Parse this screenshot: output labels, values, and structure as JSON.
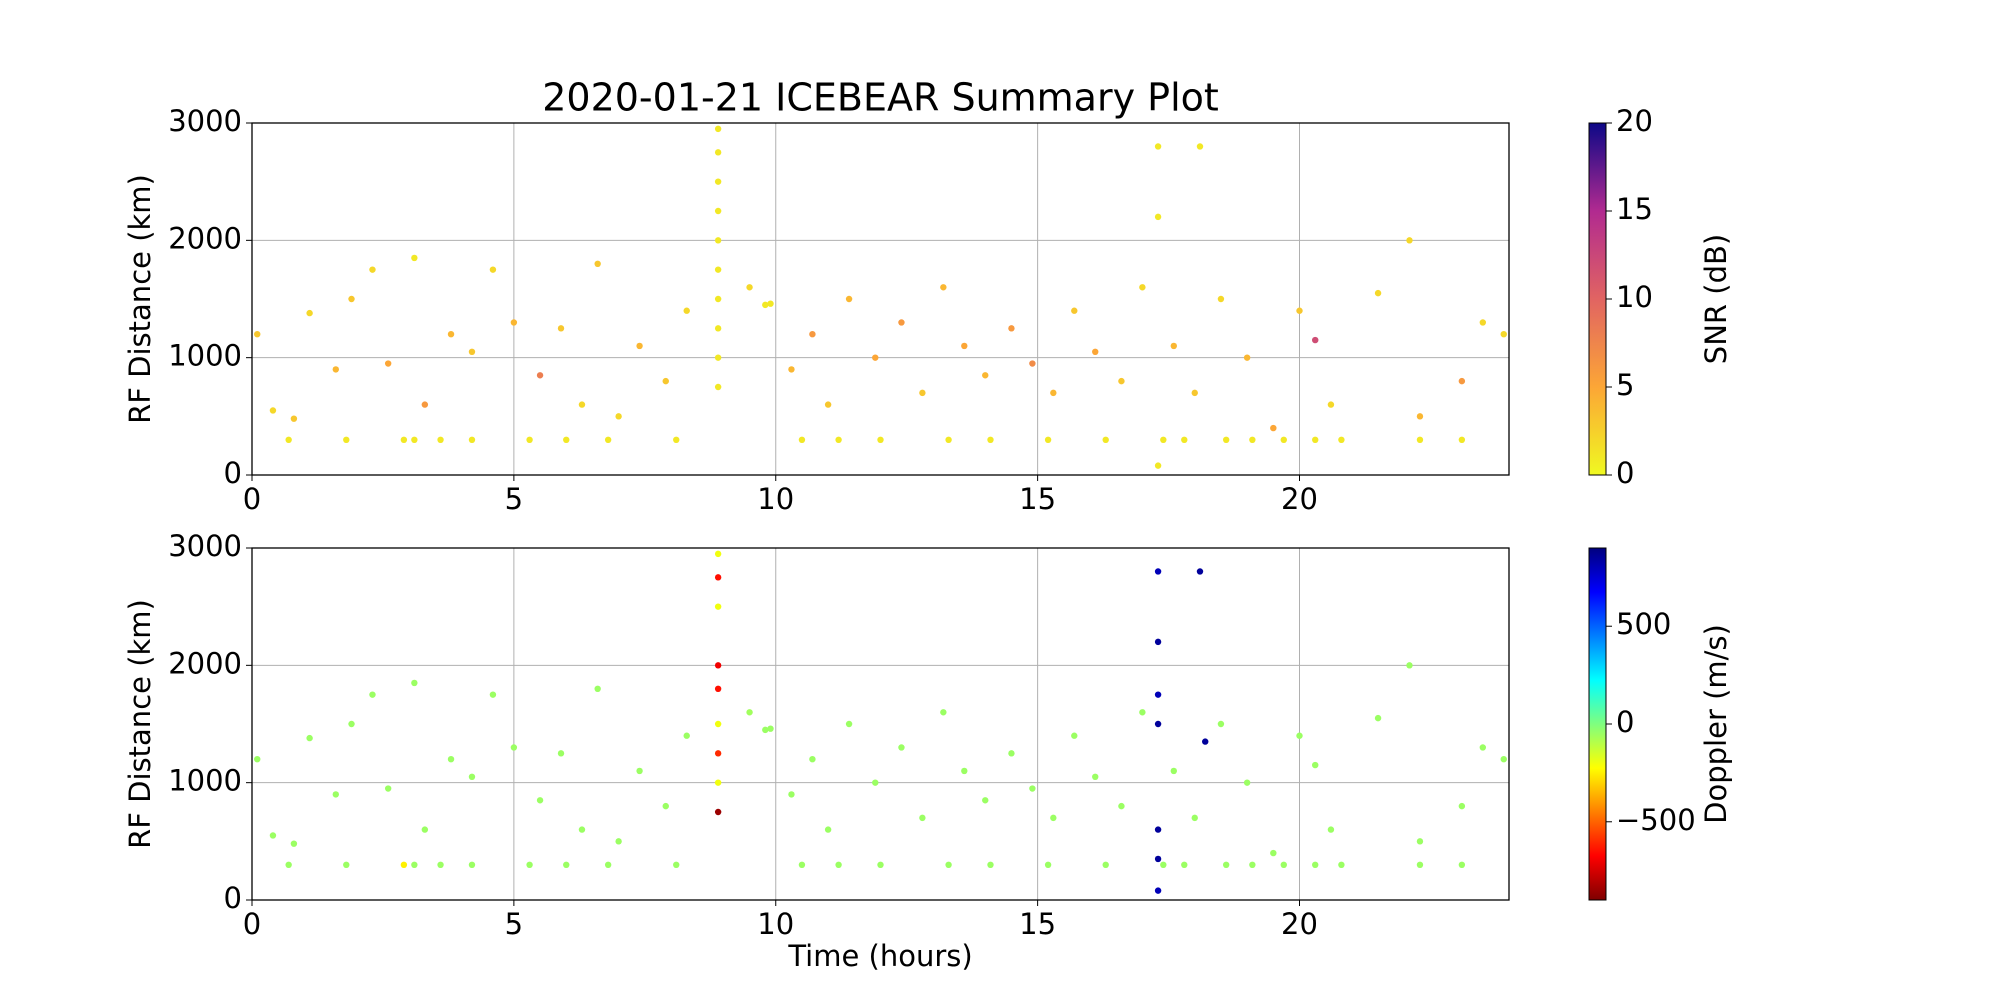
{
  "chart_data": [
    {
      "type": "scatter",
      "title": "2020-01-21 ICEBEAR Summary Plot",
      "y_label": "RF Distance (km)",
      "xlim": [
        0,
        24
      ],
      "xticks": [
        0,
        5,
        10,
        15,
        20
      ],
      "ylim": [
        0,
        3000
      ],
      "yticks": [
        0,
        1000,
        2000,
        3000
      ],
      "grid": true,
      "colorbar": {
        "label": "SNR (dB)",
        "lim": [
          0,
          20
        ],
        "ticks": [
          0,
          5,
          10,
          15,
          20
        ],
        "colormap": [
          "#f0f921",
          "#fca636",
          "#e16462",
          "#b12a90",
          "#0d0887"
        ]
      },
      "series": [
        {
          "x": [
            8.9,
            8.9,
            8.9,
            8.9,
            8.9,
            8.9,
            8.9,
            8.9,
            8.9,
            8.9,
            9.8,
            9.9,
            9.5,
            0.7,
            1.8,
            2.9,
            3.1,
            3.6,
            4.2,
            5.3,
            6.0,
            6.8,
            8.1,
            10.5,
            11.2,
            12.0,
            13.3,
            14.1,
            15.2,
            16.3,
            17.4,
            17.8,
            18.6,
            19.1,
            19.7,
            20.3,
            20.8,
            22.3,
            23.1,
            17.3,
            18.1,
            17.3,
            22.1,
            17.3,
            0.1,
            0.4,
            0.8,
            1.1,
            1.6,
            1.9,
            2.3,
            2.6,
            3.1,
            3.3,
            3.8,
            4.2,
            4.6,
            5.0,
            5.5,
            5.9,
            6.3,
            6.6,
            7.0,
            7.4,
            7.9,
            8.3,
            10.3,
            10.7,
            11.0,
            11.4,
            11.9,
            12.4,
            12.8,
            13.2,
            13.6,
            14.0,
            14.5,
            14.9,
            15.3,
            15.7,
            16.1,
            16.6,
            17.0,
            17.6,
            18.0,
            18.5,
            19.0,
            19.5,
            20.0,
            20.3,
            20.6,
            21.5,
            22.3,
            23.1,
            23.5,
            23.9
          ],
          "y": [
            750,
            1000,
            1250,
            1500,
            1750,
            2000,
            2250,
            2500,
            2750,
            2950,
            1450,
            1460,
            1600,
            300,
            300,
            300,
            300,
            300,
            300,
            300,
            300,
            300,
            300,
            300,
            300,
            300,
            300,
            300,
            300,
            300,
            300,
            300,
            300,
            300,
            300,
            300,
            300,
            300,
            300,
            2800,
            2800,
            2200,
            2000,
            80,
            1200,
            550,
            480,
            1380,
            900,
            1500,
            1750,
            950,
            1850,
            600,
            1200,
            1050,
            1750,
            1300,
            850,
            1250,
            600,
            1800,
            500,
            1100,
            800,
            1400,
            900,
            1200,
            600,
            1500,
            1000,
            1300,
            700,
            1600,
            1100,
            850,
            1250,
            950,
            700,
            1400,
            1050,
            800,
            1600,
            1100,
            700,
            1500,
            1000,
            400,
            1400,
            1150,
            600,
            1550,
            500,
            800,
            1300,
            1200
          ],
          "c": [
            1,
            1,
            1,
            1,
            1,
            1,
            1,
            1,
            1,
            1,
            1,
            1,
            2,
            1,
            1,
            1,
            1,
            1,
            1,
            1,
            1,
            1,
            1,
            1,
            1,
            1,
            1,
            1,
            1,
            1,
            1,
            1,
            1,
            1,
            1,
            1,
            1,
            1,
            1,
            1,
            1,
            1,
            2,
            1,
            3,
            2,
            3,
            2,
            4,
            3,
            2,
            5,
            1,
            6,
            4,
            3,
            2,
            4,
            8,
            3,
            2,
            3,
            2,
            4,
            3,
            2,
            4,
            6,
            3,
            4,
            5,
            6,
            3,
            4,
            5,
            4,
            6,
            7,
            4,
            3,
            5,
            3,
            2,
            4,
            3,
            2,
            4,
            5,
            3,
            12,
            2,
            2,
            4,
            6,
            2,
            2
          ]
        }
      ]
    },
    {
      "type": "scatter",
      "x_label": "Time (hours)",
      "y_label": "RF Distance (km)",
      "xlim": [
        0,
        24
      ],
      "xticks": [
        0,
        5,
        10,
        15,
        20
      ],
      "ylim": [
        0,
        3000
      ],
      "yticks": [
        0,
        1000,
        2000,
        3000
      ],
      "grid": true,
      "colorbar": {
        "label": "Doppler (m/s)",
        "lim": [
          -900,
          900
        ],
        "ticks": [
          {
            "value": -500,
            "label": "−500"
          },
          0,
          500
        ],
        "colormap": [
          "#7f0000",
          "#ff0000",
          "#ff7f00",
          "#ffff00",
          "#7fff7f",
          "#00ffff",
          "#007fff",
          "#0000ff",
          "#00007f"
        ]
      },
      "series": [
        {
          "x": [
            8.9,
            8.9,
            8.9,
            8.9,
            8.9,
            8.9,
            8.9,
            8.9,
            8.9,
            9.8,
            9.9,
            9.5,
            0.7,
            1.8,
            2.9,
            3.1,
            3.6,
            4.2,
            5.3,
            6.0,
            6.8,
            8.1,
            10.5,
            11.2,
            12.0,
            13.3,
            14.1,
            15.2,
            16.3,
            17.4,
            17.8,
            18.6,
            19.1,
            19.7,
            20.3,
            20.8,
            22.3,
            23.1,
            17.3,
            17.3,
            17.3,
            17.3,
            17.3,
            17.3,
            17.3,
            18.1,
            18.2,
            22.1,
            0.1,
            0.4,
            0.8,
            1.1,
            1.6,
            1.9,
            2.3,
            2.6,
            3.1,
            3.3,
            3.8,
            4.2,
            4.6,
            5.0,
            5.5,
            5.9,
            6.3,
            6.6,
            7.0,
            7.4,
            7.9,
            8.3,
            10.3,
            10.7,
            11.0,
            11.4,
            11.9,
            12.4,
            12.8,
            13.2,
            13.6,
            14.0,
            14.5,
            14.9,
            15.3,
            15.7,
            16.1,
            16.6,
            17.0,
            17.6,
            18.0,
            18.5,
            19.0,
            19.5,
            20.0,
            20.3,
            20.6,
            21.5,
            22.3,
            23.1,
            23.5,
            23.9
          ],
          "y": [
            750,
            1000,
            1250,
            1500,
            1800,
            2000,
            2500,
            2750,
            2950,
            1450,
            1460,
            1600,
            300,
            300,
            300,
            300,
            300,
            300,
            300,
            300,
            300,
            300,
            300,
            300,
            300,
            300,
            300,
            300,
            300,
            300,
            300,
            300,
            300,
            300,
            300,
            300,
            300,
            300,
            2800,
            2200,
            1750,
            1500,
            600,
            350,
            80,
            2800,
            1350,
            2000,
            1200,
            550,
            480,
            1380,
            900,
            1500,
            1750,
            950,
            1850,
            600,
            1200,
            1050,
            1750,
            1300,
            850,
            1250,
            600,
            1800,
            500,
            1100,
            800,
            1400,
            900,
            1200,
            600,
            1500,
            1000,
            1300,
            700,
            1600,
            1100,
            850,
            1250,
            950,
            700,
            1400,
            1050,
            800,
            1600,
            1100,
            700,
            1500,
            1000,
            400,
            1400,
            1150,
            600,
            1550,
            500,
            800,
            1300,
            1200
          ],
          "c": [
            -850,
            -200,
            -600,
            -200,
            -650,
            -700,
            -200,
            -650,
            -200,
            -50,
            -50,
            -60,
            -50,
            -50,
            -250,
            -50,
            -50,
            -50,
            -50,
            -50,
            -50,
            -50,
            -50,
            -50,
            -50,
            -50,
            -50,
            -50,
            -50,
            -50,
            -50,
            -50,
            -50,
            -50,
            -50,
            -50,
            -50,
            -50,
            800,
            850,
            800,
            850,
            850,
            850,
            800,
            850,
            850,
            -50,
            -50,
            -50,
            -50,
            -50,
            -50,
            -50,
            -50,
            -50,
            -50,
            -50,
            -50,
            -50,
            -50,
            -50,
            -50,
            -50,
            -50,
            -50,
            -50,
            -50,
            -50,
            -50,
            -50,
            -50,
            -50,
            -50,
            -50,
            -50,
            -50,
            -50,
            -50,
            -50,
            -50,
            -50,
            -50,
            -50,
            -50,
            -50,
            -50,
            -50,
            -50,
            -50,
            -50,
            -50,
            -50,
            -50,
            -50,
            -50,
            -50,
            -50,
            -50,
            -50
          ]
        }
      ]
    }
  ]
}
